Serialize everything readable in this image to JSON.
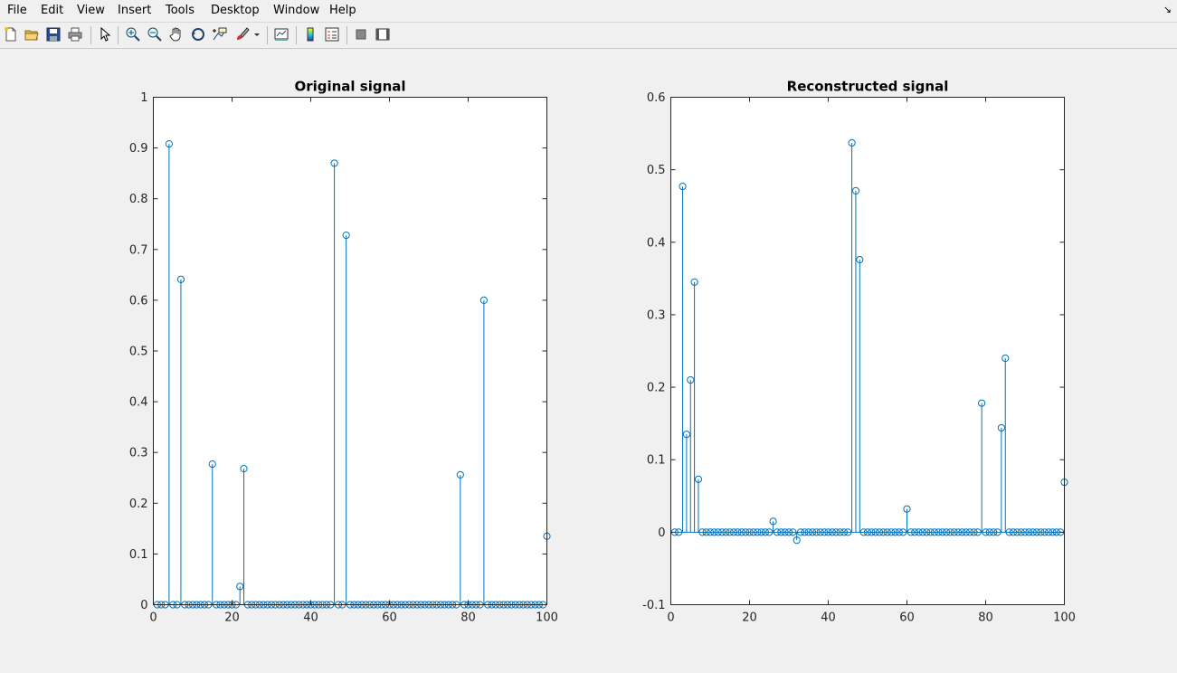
{
  "menu": {
    "items": [
      {
        "label": "File"
      },
      {
        "label": "Edit"
      },
      {
        "label": "View"
      },
      {
        "label": "Insert"
      },
      {
        "label": "Tools"
      },
      {
        "label": "Desktop"
      },
      {
        "label": "Window"
      },
      {
        "label": "Help"
      }
    ]
  },
  "toolbar": {
    "icons": [
      "new-figure-icon",
      "open-file-icon",
      "save-icon",
      "print-icon",
      "edit-plot-arrow-icon",
      "zoom-in-icon",
      "zoom-out-icon",
      "pan-hand-icon",
      "rotate-3d-icon",
      "data-cursor-icon",
      "brush-icon",
      "link-plot-icon",
      "colorbar-icon",
      "legend-icon",
      "hide-plot-tools-icon",
      "show-plot-tools-icon"
    ]
  },
  "colors": {
    "stem": "#0072bd",
    "axis": "#262626",
    "figure_bg": "#f0f0f0",
    "axes_bg": "#ffffff"
  },
  "chart_data": [
    {
      "type": "stem",
      "title": "Original signal",
      "xlim": [
        0,
        100
      ],
      "ylim": [
        0,
        1
      ],
      "xticks": [
        0,
        20,
        40,
        60,
        80,
        100
      ],
      "yticks": [
        0,
        0.1,
        0.2,
        0.3,
        0.4,
        0.5,
        0.6,
        0.7,
        0.8,
        0.9,
        1
      ],
      "ytick_labels": [
        "0",
        "0.1",
        "0.2",
        "0.3",
        "0.4",
        "0.5",
        "0.6",
        "0.7",
        "0.8",
        "0.9",
        "1"
      ],
      "x_range": [
        1,
        100
      ],
      "nonzero": [
        {
          "x": 4,
          "y": 0.908
        },
        {
          "x": 7,
          "y": 0.641
        },
        {
          "x": 15,
          "y": 0.277
        },
        {
          "x": 22,
          "y": 0.036
        },
        {
          "x": 23,
          "y": 0.268
        },
        {
          "x": 46,
          "y": 0.87
        },
        {
          "x": 49,
          "y": 0.728
        },
        {
          "x": 78,
          "y": 0.256
        },
        {
          "x": 84,
          "y": 0.6
        },
        {
          "x": 100,
          "y": 0.135
        }
      ],
      "grid": false
    },
    {
      "type": "stem",
      "title": "Reconstructed signal",
      "xlim": [
        0,
        100
      ],
      "ylim": [
        -0.1,
        0.6
      ],
      "xticks": [
        0,
        20,
        40,
        60,
        80,
        100
      ],
      "yticks": [
        -0.1,
        0,
        0.1,
        0.2,
        0.3,
        0.4,
        0.5,
        0.6
      ],
      "ytick_labels": [
        "-0.1",
        "0",
        "0.1",
        "0.2",
        "0.3",
        "0.4",
        "0.5",
        "0.6"
      ],
      "x_range": [
        1,
        100
      ],
      "nonzero": [
        {
          "x": 3,
          "y": 0.477
        },
        {
          "x": 4,
          "y": 0.135
        },
        {
          "x": 5,
          "y": 0.21
        },
        {
          "x": 6,
          "y": 0.345
        },
        {
          "x": 7,
          "y": 0.073
        },
        {
          "x": 26,
          "y": 0.015
        },
        {
          "x": 32,
          "y": -0.011
        },
        {
          "x": 46,
          "y": 0.537
        },
        {
          "x": 47,
          "y": 0.471
        },
        {
          "x": 48,
          "y": 0.376
        },
        {
          "x": 60,
          "y": 0.032
        },
        {
          "x": 79,
          "y": 0.178
        },
        {
          "x": 84,
          "y": 0.144
        },
        {
          "x": 85,
          "y": 0.24
        },
        {
          "x": 100,
          "y": 0.069
        }
      ],
      "grid": false
    }
  ]
}
